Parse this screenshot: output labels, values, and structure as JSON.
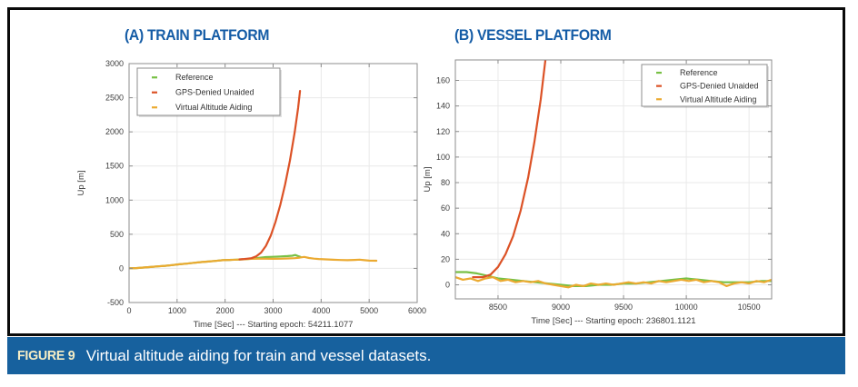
{
  "figure": {
    "caption_label": "FIGURE 9",
    "caption_text": "Virtual altitude aiding for train and vessel datasets."
  },
  "colors": {
    "title_blue": "#155ca6",
    "caption_bg": "#17619e",
    "caption_label": "#f5edc5",
    "reference": "#77c044",
    "gps_denied": "#dc5226",
    "virtual_aiding": "#ebaa31",
    "grid": "#e9e9e9",
    "axis": "#8c8c8c",
    "tick_text": "#3d3d3d"
  },
  "chart_data": [
    {
      "type": "line",
      "title": "(A) TRAIN PLATFORM",
      "xlabel": "Time [Sec] --- Starting epoch: 54211.1077",
      "ylabel": "Up [m]",
      "xlim": [
        0,
        6000
      ],
      "ylim": [
        -500,
        3000
      ],
      "xticks": [
        0,
        1000,
        2000,
        3000,
        4000,
        5000,
        6000
      ],
      "yticks": [
        -500,
        0,
        500,
        1000,
        1500,
        2000,
        2500,
        3000
      ],
      "grid": true,
      "legend_position": "inside-top-left",
      "series": [
        {
          "name": "Reference",
          "color_key": "reference",
          "points": [
            [
              0,
              0
            ],
            [
              150,
              5
            ],
            [
              300,
              12
            ],
            [
              450,
              20
            ],
            [
              600,
              30
            ],
            [
              750,
              38
            ],
            [
              900,
              48
            ],
            [
              1050,
              60
            ],
            [
              1200,
              70
            ],
            [
              1350,
              82
            ],
            [
              1500,
              92
            ],
            [
              1650,
              100
            ],
            [
              1800,
              110
            ],
            [
              1950,
              120
            ],
            [
              2100,
              124
            ],
            [
              2250,
              128
            ],
            [
              2400,
              134
            ],
            [
              2550,
              142
            ],
            [
              2700,
              155
            ],
            [
              2850,
              165
            ],
            [
              3000,
              170
            ],
            [
              3150,
              175
            ],
            [
              3300,
              180
            ],
            [
              3400,
              185
            ],
            [
              3460,
              196
            ],
            [
              3520,
              180
            ],
            [
              3570,
              168
            ]
          ]
        },
        {
          "name": "Virtual Altitude Aiding",
          "color_key": "virtual_aiding",
          "points": [
            [
              0,
              0
            ],
            [
              150,
              5
            ],
            [
              300,
              12
            ],
            [
              450,
              20
            ],
            [
              600,
              30
            ],
            [
              750,
              38
            ],
            [
              900,
              48
            ],
            [
              1050,
              60
            ],
            [
              1200,
              70
            ],
            [
              1350,
              82
            ],
            [
              1500,
              92
            ],
            [
              1650,
              100
            ],
            [
              1800,
              110
            ],
            [
              1950,
              120
            ],
            [
              2100,
              124
            ],
            [
              2250,
              128
            ],
            [
              2400,
              134
            ],
            [
              2550,
              140
            ],
            [
              2700,
              142
            ],
            [
              2850,
              142
            ],
            [
              3000,
              140
            ],
            [
              3150,
              142
            ],
            [
              3300,
              146
            ],
            [
              3450,
              150
            ],
            [
              3550,
              158
            ],
            [
              3650,
              168
            ],
            [
              3750,
              152
            ],
            [
              3850,
              143
            ],
            [
              3950,
              138
            ],
            [
              4100,
              132
            ],
            [
              4250,
              127
            ],
            [
              4400,
              123
            ],
            [
              4550,
              120
            ],
            [
              4700,
              124
            ],
            [
              4800,
              128
            ],
            [
              4900,
              120
            ],
            [
              5000,
              114
            ],
            [
              5150,
              112
            ]
          ]
        },
        {
          "name": "GPS-Denied Unaided",
          "color_key": "gps_denied",
          "points": [
            [
              2300,
              132
            ],
            [
              2400,
              138
            ],
            [
              2450,
              142
            ],
            [
              2550,
              150
            ],
            [
              2650,
              178
            ],
            [
              2750,
              232
            ],
            [
              2850,
              330
            ],
            [
              2950,
              480
            ],
            [
              3050,
              680
            ],
            [
              3150,
              930
            ],
            [
              3250,
              1230
            ],
            [
              3350,
              1580
            ],
            [
              3450,
              2000
            ],
            [
              3520,
              2350
            ],
            [
              3560,
              2600
            ]
          ]
        }
      ],
      "legend_entries": [
        "Reference",
        "GPS-Denied Unaided",
        "Virtual Altitude Aiding"
      ]
    },
    {
      "type": "line",
      "title": "(B) VESSEL PLATFORM",
      "xlabel": "Time [Sec] --- Starting epoch: 236801.1121",
      "ylabel": "Up [m]",
      "xlim": [
        8160,
        10680
      ],
      "ylim": [
        -11,
        176
      ],
      "xticks": [
        8500,
        9000,
        9500,
        10000,
        10500
      ],
      "yticks": [
        0,
        20,
        40,
        60,
        80,
        100,
        120,
        140,
        160
      ],
      "grid": true,
      "legend_position": "inside-top-right",
      "series": [
        {
          "name": "Reference",
          "color_key": "reference",
          "points": [
            [
              8160,
              10
            ],
            [
              8250,
              10
            ],
            [
              8330,
              9
            ],
            [
              8420,
              7
            ],
            [
              8500,
              5
            ],
            [
              8600,
              4
            ],
            [
              8700,
              3
            ],
            [
              8800,
              2
            ],
            [
              8900,
              1
            ],
            [
              9000,
              0
            ],
            [
              9100,
              -1
            ],
            [
              9200,
              -1
            ],
            [
              9300,
              0
            ],
            [
              9400,
              0
            ],
            [
              9500,
              1
            ],
            [
              9600,
              1
            ],
            [
              9700,
              2
            ],
            [
              9800,
              3
            ],
            [
              9900,
              4
            ],
            [
              10000,
              5
            ],
            [
              10100,
              4
            ],
            [
              10200,
              3
            ],
            [
              10300,
              2
            ],
            [
              10400,
              2
            ],
            [
              10500,
              2
            ],
            [
              10600,
              3
            ],
            [
              10680,
              3
            ]
          ]
        },
        {
          "name": "Virtual Altitude Aiding",
          "color_key": "virtual_aiding",
          "points": [
            [
              8160,
              6
            ],
            [
              8220,
              4
            ],
            [
              8280,
              5
            ],
            [
              8340,
              3
            ],
            [
              8400,
              5
            ],
            [
              8460,
              6
            ],
            [
              8520,
              3
            ],
            [
              8580,
              4
            ],
            [
              8640,
              2
            ],
            [
              8700,
              3
            ],
            [
              8760,
              2
            ],
            [
              8820,
              3
            ],
            [
              8880,
              1
            ],
            [
              8940,
              0
            ],
            [
              9000,
              -1
            ],
            [
              9060,
              -2
            ],
            [
              9120,
              0
            ],
            [
              9180,
              -1
            ],
            [
              9240,
              1
            ],
            [
              9300,
              0
            ],
            [
              9360,
              1
            ],
            [
              9420,
              0
            ],
            [
              9480,
              1
            ],
            [
              9540,
              2
            ],
            [
              9600,
              1
            ],
            [
              9660,
              2
            ],
            [
              9720,
              1
            ],
            [
              9780,
              3
            ],
            [
              9840,
              2
            ],
            [
              9900,
              3
            ],
            [
              9960,
              4
            ],
            [
              10020,
              3
            ],
            [
              10080,
              4
            ],
            [
              10140,
              2
            ],
            [
              10200,
              3
            ],
            [
              10260,
              2
            ],
            [
              10320,
              -1
            ],
            [
              10380,
              1
            ],
            [
              10440,
              2
            ],
            [
              10500,
              1
            ],
            [
              10560,
              3
            ],
            [
              10620,
              2
            ],
            [
              10680,
              4
            ]
          ]
        },
        {
          "name": "GPS-Denied Unaided",
          "color_key": "gps_denied",
          "points": [
            [
              8300,
              6
            ],
            [
              8380,
              6
            ],
            [
              8440,
              8
            ],
            [
              8500,
              14
            ],
            [
              8560,
              24
            ],
            [
              8620,
              38
            ],
            [
              8680,
              58
            ],
            [
              8740,
              84
            ],
            [
              8790,
              112
            ],
            [
              8840,
              145
            ],
            [
              8880,
              178
            ]
          ]
        }
      ],
      "legend_entries": [
        "Reference",
        "GPS-Denied Unaided",
        "Virtual Altitude Aiding"
      ]
    }
  ]
}
